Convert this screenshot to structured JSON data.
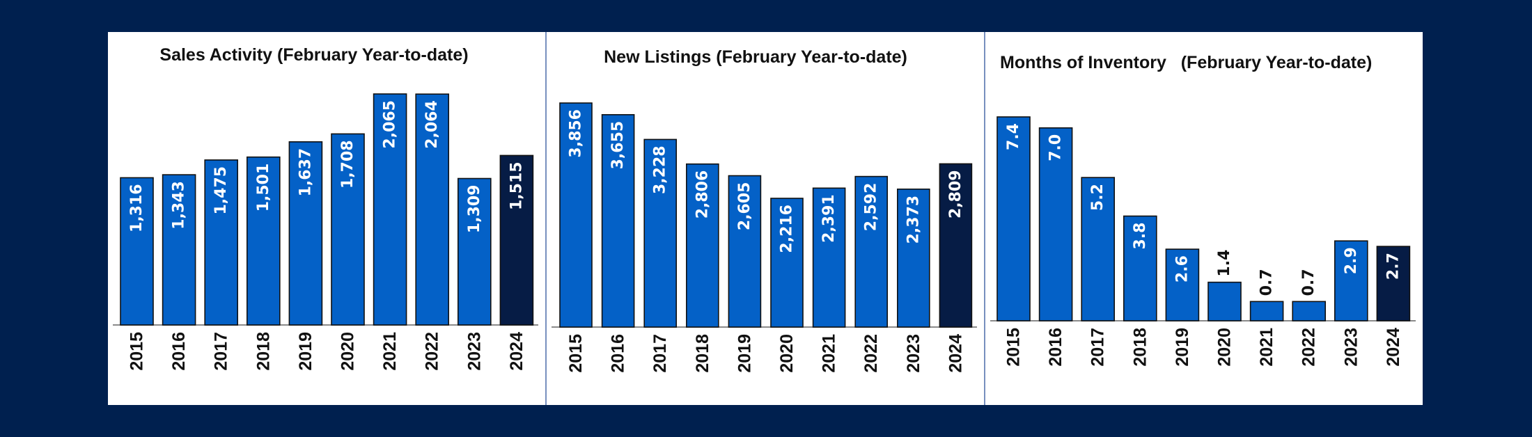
{
  "colors": {
    "background": "#00204f",
    "panel": "#ffffff",
    "bar": "#0461c7",
    "bar_highlight": "#061c45",
    "label_text": "#ffffff",
    "label_outside_text": "#111111"
  },
  "chart_data": [
    {
      "type": "bar",
      "title": "Sales Activity (February Year-to-date)",
      "categories": [
        "2015",
        "2016",
        "2017",
        "2018",
        "2019",
        "2020",
        "2021",
        "2022",
        "2023",
        "2024"
      ],
      "values": [
        1316,
        1343,
        1475,
        1501,
        1637,
        1708,
        2065,
        2064,
        1309,
        1515
      ],
      "value_labels": [
        "1,316",
        "1,343",
        "1,475",
        "1,501",
        "1,637",
        "1,708",
        "2,065",
        "2,064",
        "1,309",
        "1,515"
      ],
      "highlight_category": "2024",
      "ylim": [
        0,
        2065
      ],
      "grid": false,
      "legend": "none"
    },
    {
      "type": "bar",
      "title": "New Listings (February Year-to-date)",
      "categories": [
        "2015",
        "2016",
        "2017",
        "2018",
        "2019",
        "2020",
        "2021",
        "2022",
        "2023",
        "2024"
      ],
      "values": [
        3856,
        3655,
        3228,
        2806,
        2605,
        2216,
        2391,
        2592,
        2373,
        2809
      ],
      "value_labels": [
        "3,856",
        "3,655",
        "3,228",
        "2,806",
        "2,605",
        "2,216",
        "2,391",
        "2,592",
        "2,373",
        "2,809"
      ],
      "highlight_category": "2024",
      "ylim": [
        0,
        3856
      ],
      "grid": false,
      "legend": "none"
    },
    {
      "type": "bar",
      "title": "Months of Inventory   (February Year-to-date)",
      "categories": [
        "2015",
        "2016",
        "2017",
        "2018",
        "2019",
        "2020",
        "2021",
        "2022",
        "2023",
        "2024"
      ],
      "values": [
        7.4,
        7.0,
        5.2,
        3.8,
        2.6,
        1.4,
        0.7,
        0.7,
        2.9,
        2.7
      ],
      "value_labels": [
        "7.4",
        "7.0",
        "5.2",
        "3.8",
        "2.6",
        "1.4",
        "0.7",
        "0.7",
        "2.9",
        "2.7"
      ],
      "highlight_category": "2024",
      "ylim": [
        0,
        7.4
      ],
      "grid": false,
      "legend": "none"
    }
  ]
}
